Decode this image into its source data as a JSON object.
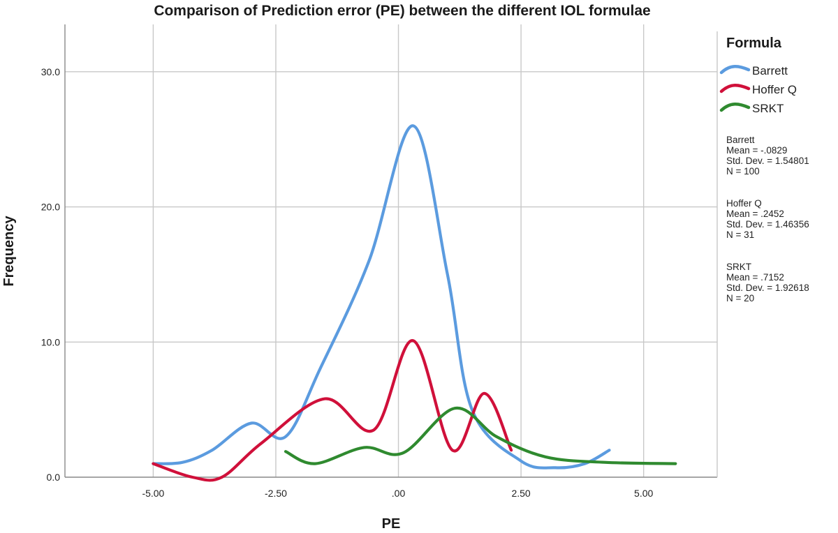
{
  "chart_data": {
    "type": "line",
    "title": "Comparison of Prediction error (PE) between the different IOL formulae",
    "xlabel": "PE",
    "ylabel": "Frequency",
    "xlim": [
      -6.8,
      6.5
    ],
    "ylim": [
      0,
      33.5
    ],
    "x_ticks": [
      {
        "value": -5,
        "label": "-5.00"
      },
      {
        "value": -2.5,
        "label": "-2.50"
      },
      {
        "value": 0,
        "label": ".00"
      },
      {
        "value": 2.5,
        "label": "2.50"
      },
      {
        "value": 5,
        "label": "5.00"
      }
    ],
    "y_ticks": [
      {
        "value": 0,
        "label": "0.0"
      },
      {
        "value": 10,
        "label": "10.0"
      },
      {
        "value": 20,
        "label": "20.0"
      },
      {
        "value": 30,
        "label": "30.0"
      }
    ],
    "grid": true,
    "legend": {
      "title": "Formula",
      "position": "right"
    },
    "series": [
      {
        "name": "Barrett",
        "color": "#5b9bdf",
        "points": [
          [
            -5.0,
            1.0
          ],
          [
            -4.4,
            1.1
          ],
          [
            -3.8,
            2.0
          ],
          [
            -3.0,
            4.0
          ],
          [
            -2.3,
            3.0
          ],
          [
            -1.6,
            8.0
          ],
          [
            -0.6,
            16.0
          ],
          [
            0.3,
            26.0
          ],
          [
            1.0,
            15.0
          ],
          [
            1.5,
            5.0
          ],
          [
            2.5,
            1.2
          ],
          [
            3.2,
            0.7
          ],
          [
            3.8,
            1.0
          ],
          [
            4.3,
            2.0
          ]
        ]
      },
      {
        "name": "Hoffer Q",
        "color": "#d0103a",
        "points": [
          [
            -5.0,
            1.0
          ],
          [
            -4.2,
            0.0
          ],
          [
            -3.6,
            0.0
          ],
          [
            -2.8,
            2.5
          ],
          [
            -1.5,
            5.8
          ],
          [
            -0.5,
            3.5
          ],
          [
            0.3,
            10.1
          ],
          [
            1.1,
            2.0
          ],
          [
            1.75,
            6.2
          ],
          [
            2.3,
            2.0
          ]
        ]
      },
      {
        "name": "SRKT",
        "color": "#2f8a2f",
        "points": [
          [
            -2.3,
            1.9
          ],
          [
            -1.7,
            1.0
          ],
          [
            -0.7,
            2.2
          ],
          [
            0.1,
            1.8
          ],
          [
            1.15,
            5.1
          ],
          [
            2.0,
            3.0
          ],
          [
            3.0,
            1.5
          ],
          [
            4.2,
            1.1
          ],
          [
            5.65,
            1.0
          ]
        ]
      }
    ],
    "annotations": [
      {
        "name": "Barrett",
        "lines": [
          "Mean = -.0829",
          "Std. Dev. = 1.54801",
          "N = 100"
        ]
      },
      {
        "name": "Hoffer Q",
        "lines": [
          "Mean = .2452",
          "Std. Dev. = 1.46356",
          "N = 31"
        ]
      },
      {
        "name": "SRKT",
        "lines": [
          "Mean = .7152",
          "Std. Dev. = 1.92618",
          "N = 20"
        ]
      }
    ]
  }
}
